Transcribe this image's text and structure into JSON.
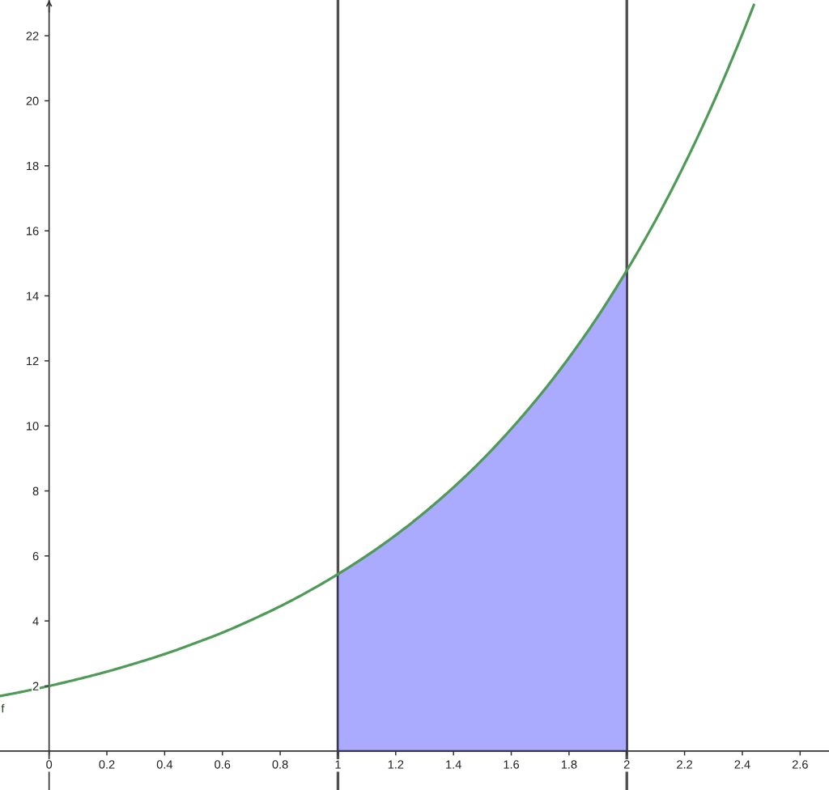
{
  "chart_data": {
    "type": "line",
    "xlim": [
      -0.17,
      2.7
    ],
    "ylim": [
      -1.2,
      23.1
    ],
    "xticks": [
      0,
      0.2,
      0.4,
      0.6,
      0.8,
      1,
      1.2,
      1.4,
      1.6,
      1.8,
      2,
      2.2,
      2.4,
      2.6
    ],
    "yticks": [
      2,
      4,
      6,
      8,
      10,
      12,
      14,
      16,
      18,
      20,
      22
    ],
    "ref_lines": [
      {
        "axis": "x",
        "value": 1,
        "color": "#505050"
      },
      {
        "axis": "x",
        "value": 2,
        "color": "#505050"
      }
    ],
    "series": [
      {
        "type": "area",
        "color": "#aaaaff",
        "x": [
          1.0,
          1.1,
          1.2,
          1.3,
          1.4,
          1.5,
          1.6,
          1.7,
          1.8,
          1.9,
          2.0
        ],
        "values": [
          5.44,
          6.01,
          6.64,
          7.34,
          8.11,
          8.96,
          9.91,
          10.95,
          12.1,
          13.37,
          14.78
        ]
      },
      {
        "name": "f",
        "color": "#4e9a56",
        "x": [
          -0.17,
          -0.1,
          0,
          0.1,
          0.2,
          0.3,
          0.4,
          0.5,
          0.6,
          0.7,
          0.8,
          0.9,
          1.0,
          1.1,
          1.2,
          1.3,
          1.4,
          1.5,
          1.6,
          1.7,
          1.8,
          1.9,
          2.0,
          2.1,
          2.2,
          2.3,
          2.4,
          2.44
        ],
        "values": [
          1.69,
          1.81,
          2.0,
          2.21,
          2.44,
          2.7,
          2.98,
          3.3,
          3.64,
          4.03,
          4.45,
          4.92,
          5.44,
          6.01,
          6.64,
          7.34,
          8.11,
          8.96,
          9.91,
          10.95,
          12.1,
          13.37,
          14.78,
          16.33,
          18.05,
          19.95,
          22.05,
          22.95
        ]
      }
    ]
  }
}
